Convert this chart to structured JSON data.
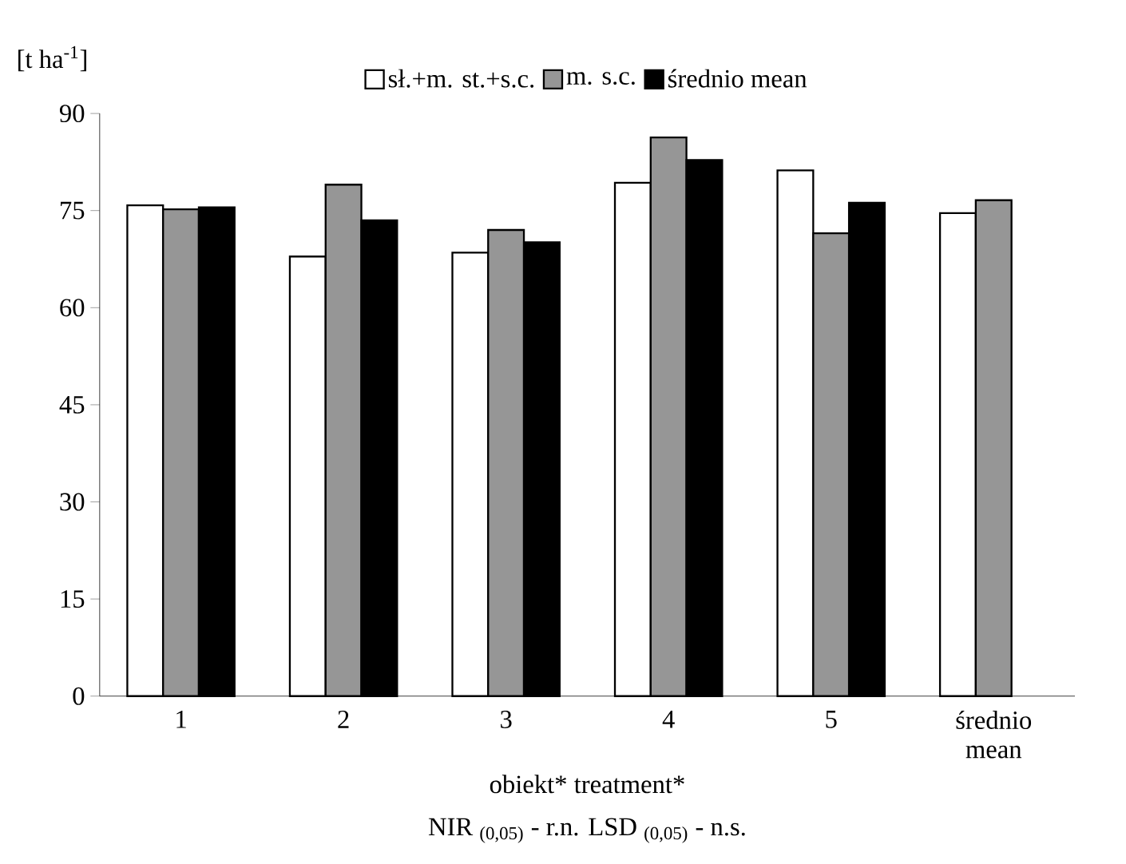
{
  "chart_data": {
    "type": "bar",
    "xlabel": "obiekt*  treatment*",
    "ylabel": "[t ha$^{-1}$]",
    "annotations": [
      "NIR $_{(0,05)}$ - r.n. LSD $_{(0,05)}$ - n.s."
    ],
    "categories": [
      "1",
      "2",
      "3",
      "4",
      "5",
      "średnio mean"
    ],
    "series": [
      {
        "name": "sł.+m. st.+s.c.",
        "color": "#ffffff",
        "values": [
          75.8,
          67.9,
          68.5,
          79.3,
          81.2,
          74.6
        ]
      },
      {
        "name": "m. s.c.",
        "color": "#969696",
        "values": [
          75.2,
          79.0,
          72.0,
          86.3,
          71.5,
          76.6
        ]
      },
      {
        "name": "średnio mean",
        "color": "#000000",
        "values": [
          75.5,
          73.5,
          70.1,
          82.8,
          76.2,
          null
        ]
      }
    ],
    "ylim": [
      0,
      90
    ],
    "yticks": [
      0,
      15,
      30,
      45,
      60,
      75,
      90
    ],
    "legend": "top",
    "grid": false
  }
}
